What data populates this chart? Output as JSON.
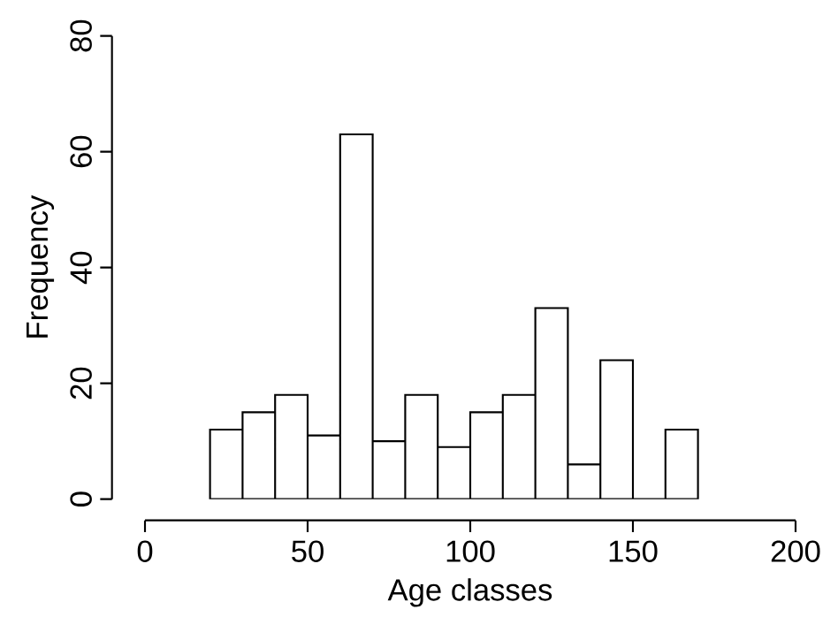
{
  "chart_data": {
    "type": "histogram",
    "xlabel": "Age classes",
    "ylabel": "Frequency",
    "bins": [
      20,
      30,
      40,
      50,
      60,
      70,
      80,
      90,
      100,
      110,
      120,
      130,
      140,
      150,
      160,
      170
    ],
    "values": [
      12,
      15,
      18,
      11,
      63,
      10,
      18,
      9,
      15,
      18,
      33,
      6,
      24,
      0,
      12
    ],
    "color": "#ffffff",
    "xlim": [
      0,
      200
    ],
    "ylim": [
      0,
      80
    ],
    "xticks": [
      0,
      50,
      100,
      150,
      200
    ],
    "yticks": [
      0,
      20,
      40,
      60,
      80
    ]
  }
}
